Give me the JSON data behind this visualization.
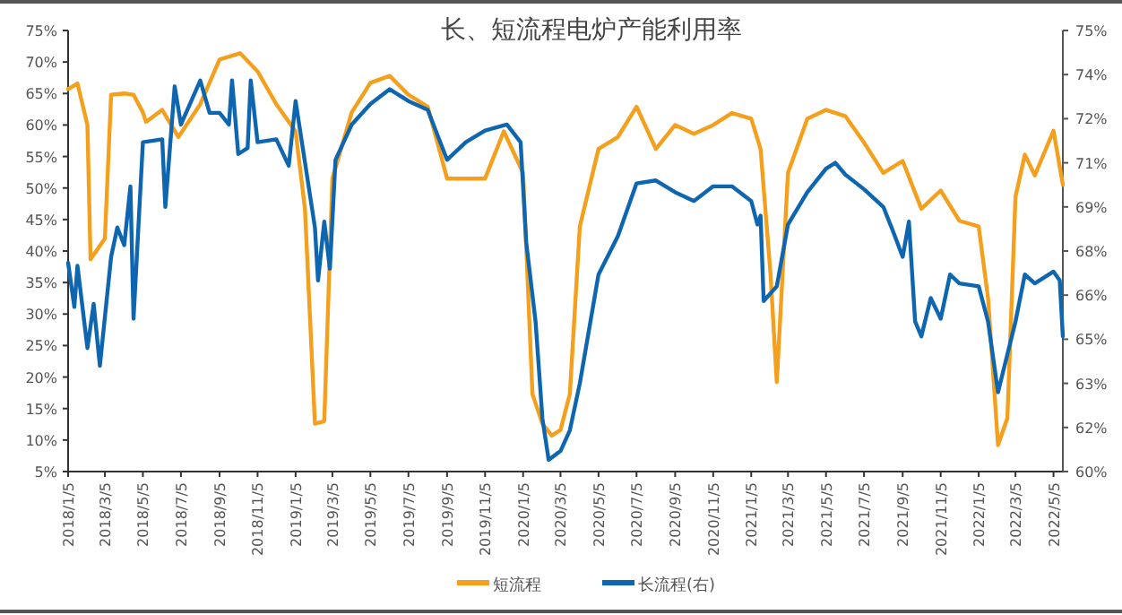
{
  "chart_data": {
    "type": "line",
    "title": "长、短流程电炉产能利用率",
    "legend": "bottom",
    "grid": false,
    "xlim": [
      "2018-01-05",
      "2022-05-20"
    ],
    "xticks": [
      {
        "value": "2018-01-05",
        "label": "2018/1/5"
      },
      {
        "value": "2018-03-05",
        "label": "2018/3/5"
      },
      {
        "value": "2018-05-05",
        "label": "2018/5/5"
      },
      {
        "value": "2018-07-05",
        "label": "2018/7/5"
      },
      {
        "value": "2018-09-05",
        "label": "2018/9/5"
      },
      {
        "value": "2018-11-05",
        "label": "2018/11/5"
      },
      {
        "value": "2019-01-05",
        "label": "2019/1/5"
      },
      {
        "value": "2019-03-05",
        "label": "2019/3/5"
      },
      {
        "value": "2019-05-05",
        "label": "2019/5/5"
      },
      {
        "value": "2019-07-05",
        "label": "2019/7/5"
      },
      {
        "value": "2019-09-05",
        "label": "2019/9/5"
      },
      {
        "value": "2019-11-05",
        "label": "2019/11/5"
      },
      {
        "value": "2020-01-05",
        "label": "2020/1/5"
      },
      {
        "value": "2020-03-05",
        "label": "2020/3/5"
      },
      {
        "value": "2020-05-05",
        "label": "2020/5/5"
      },
      {
        "value": "2020-07-05",
        "label": "2020/7/5"
      },
      {
        "value": "2020-09-05",
        "label": "2020/9/5"
      },
      {
        "value": "2020-11-05",
        "label": "2020/11/5"
      },
      {
        "value": "2021-01-05",
        "label": "2021/1/5"
      },
      {
        "value": "2021-03-05",
        "label": "2021/3/5"
      },
      {
        "value": "2021-05-05",
        "label": "2021/5/5"
      },
      {
        "value": "2021-07-05",
        "label": "2021/7/5"
      },
      {
        "value": "2021-09-05",
        "label": "2021/9/5"
      },
      {
        "value": "2021-11-05",
        "label": "2021/11/5"
      },
      {
        "value": "2022-01-05",
        "label": "2022/1/5"
      },
      {
        "value": "2022-03-05",
        "label": "2022/3/5"
      },
      {
        "value": "2022-05-05",
        "label": "2022/5/5"
      }
    ],
    "ylim": [
      5,
      75
    ],
    "yticks": [
      {
        "value": 5,
        "label": "5%"
      },
      {
        "value": 10,
        "label": "10%"
      },
      {
        "value": 15,
        "label": "15%"
      },
      {
        "value": 20,
        "label": "20%"
      },
      {
        "value": 25,
        "label": "25%"
      },
      {
        "value": 30,
        "label": "30%"
      },
      {
        "value": 35,
        "label": "35%"
      },
      {
        "value": 40,
        "label": "40%"
      },
      {
        "value": 45,
        "label": "45%"
      },
      {
        "value": 50,
        "label": "50%"
      },
      {
        "value": 55,
        "label": "55%"
      },
      {
        "value": 60,
        "label": "60%"
      },
      {
        "value": 65,
        "label": "65%"
      },
      {
        "value": 70,
        "label": "70%"
      },
      {
        "value": 75,
        "label": "75%"
      }
    ],
    "y2lim": [
      60,
      75
    ],
    "y2ticks": [
      {
        "value": 60,
        "label": "60%"
      },
      {
        "value": 61.5,
        "label": "62%"
      },
      {
        "value": 63,
        "label": "63%"
      },
      {
        "value": 64.5,
        "label": "65%"
      },
      {
        "value": 66,
        "label": "66%"
      },
      {
        "value": 67.5,
        "label": "68%"
      },
      {
        "value": 69,
        "label": "69%"
      },
      {
        "value": 70.5,
        "label": "71%"
      },
      {
        "value": 72,
        "label": "72%"
      },
      {
        "value": 73.5,
        "label": "74%"
      },
      {
        "value": 75,
        "label": "75%"
      }
    ],
    "series": [
      {
        "name": "短流程",
        "color": "#f5a01d",
        "x": [
          "2018-01-05",
          "2018-01-20",
          "2018-02-05",
          "2018-02-10",
          "2018-03-05",
          "2018-03-15",
          "2018-04-05",
          "2018-04-20",
          "2018-05-05",
          "2018-05-10",
          "2018-06-05",
          "2018-07-01",
          "2018-08-05",
          "2018-09-05",
          "2018-10-08",
          "2018-11-05",
          "2018-12-05",
          "2019-01-05",
          "2019-01-20",
          "2019-02-05",
          "2019-02-20",
          "2019-03-05",
          "2019-04-05",
          "2019-05-05",
          "2019-06-05",
          "2019-07-05",
          "2019-08-05",
          "2019-09-05",
          "2019-10-05",
          "2019-11-05",
          "2019-12-05",
          "2020-01-05",
          "2020-01-20",
          "2020-02-05",
          "2020-02-20",
          "2020-03-05",
          "2020-03-20",
          "2020-04-05",
          "2020-05-05",
          "2020-06-05",
          "2020-07-05",
          "2020-08-05",
          "2020-09-05",
          "2020-10-05",
          "2020-11-05",
          "2020-12-05",
          "2021-01-05",
          "2021-01-20",
          "2021-02-05",
          "2021-02-15",
          "2021-03-05",
          "2021-04-05",
          "2021-05-05",
          "2021-06-05",
          "2021-07-05",
          "2021-08-05",
          "2021-09-05",
          "2021-10-05",
          "2021-11-05",
          "2021-12-05",
          "2022-01-05",
          "2022-01-20",
          "2022-02-05",
          "2022-02-20",
          "2022-03-05",
          "2022-03-20",
          "2022-04-05",
          "2022-05-05",
          "2022-05-20"
        ],
        "values": [
          65.7,
          66.6,
          60,
          38.7,
          42,
          64.8,
          65,
          64.8,
          62,
          60.5,
          62.4,
          58.1,
          63.3,
          70.4,
          71.4,
          68.5,
          63.3,
          59,
          46.7,
          12.6,
          13,
          51.5,
          62,
          66.7,
          67.8,
          64.8,
          62.9,
          51.5,
          51.5,
          51.5,
          59,
          52.4,
          17.3,
          12.6,
          10.7,
          11.6,
          17.3,
          43.9,
          56.2,
          58.1,
          62.9,
          56.2,
          60,
          58.6,
          60,
          61.9,
          61,
          56.2,
          36.3,
          19.2,
          52.4,
          61,
          62.4,
          61.4,
          57.2,
          52.4,
          54.3,
          46.7,
          49.6,
          44.8,
          43.9,
          32.5,
          9.2,
          13.5,
          48.6,
          55.3,
          52,
          59.1,
          50.5
        ]
      },
      {
        "name": "长流程(右)",
        "color": "#0f66b0",
        "axis": "y2",
        "x": [
          "2018-01-05",
          "2018-01-15",
          "2018-01-20",
          "2018-02-05",
          "2018-02-15",
          "2018-02-25",
          "2018-03-15",
          "2018-03-25",
          "2018-04-05",
          "2018-04-15",
          "2018-04-20",
          "2018-05-05",
          "2018-06-05",
          "2018-06-10",
          "2018-06-25",
          "2018-07-05",
          "2018-08-05",
          "2018-08-20",
          "2018-09-05",
          "2018-09-20",
          "2018-09-25",
          "2018-10-05",
          "2018-10-20",
          "2018-10-25",
          "2018-11-05",
          "2018-12-05",
          "2018-12-25",
          "2019-01-05",
          "2019-02-05",
          "2019-02-10",
          "2019-02-20",
          "2019-03-01",
          "2019-03-10",
          "2019-04-05",
          "2019-05-05",
          "2019-06-05",
          "2019-07-05",
          "2019-08-05",
          "2019-09-05",
          "2019-10-05",
          "2019-11-05",
          "2019-12-10",
          "2020-01-01",
          "2020-01-10",
          "2020-01-25",
          "2020-02-05",
          "2020-02-15",
          "2020-03-05",
          "2020-03-20",
          "2020-04-05",
          "2020-05-05",
          "2020-06-05",
          "2020-07-05",
          "2020-08-05",
          "2020-09-05",
          "2020-10-05",
          "2020-11-05",
          "2020-12-05",
          "2021-01-05",
          "2021-01-15",
          "2021-01-20",
          "2021-01-25",
          "2021-02-15",
          "2021-03-05",
          "2021-04-05",
          "2021-05-05",
          "2021-05-20",
          "2021-06-05",
          "2021-07-05",
          "2021-08-05",
          "2021-08-20",
          "2021-09-05",
          "2021-09-15",
          "2021-09-25",
          "2021-10-05",
          "2021-10-20",
          "2021-11-05",
          "2021-11-20",
          "2021-12-05",
          "2022-01-05",
          "2022-01-20",
          "2022-02-05",
          "2022-03-05",
          "2022-03-20",
          "2022-04-05",
          "2022-05-05",
          "2022-05-15",
          "2022-05-20"
        ],
        "values": [
          67.1,
          65.6,
          67,
          64.2,
          65.7,
          63.6,
          67.3,
          68.3,
          67.7,
          69.7,
          65.2,
          71.2,
          71.3,
          69,
          73.1,
          71.8,
          73.3,
          72.2,
          72.2,
          71.8,
          73.3,
          70.8,
          71,
          73.3,
          71.2,
          71.3,
          70.4,
          72.6,
          68.3,
          66.5,
          68.5,
          66.9,
          70.6,
          71.8,
          72.5,
          73,
          72.6,
          72.3,
          70.6,
          71.2,
          71.6,
          71.8,
          71.2,
          67.8,
          65.1,
          61.8,
          60.4,
          60.7,
          61.4,
          63,
          66.7,
          68,
          69.8,
          69.9,
          69.5,
          69.2,
          69.7,
          69.7,
          69.2,
          68.4,
          68.7,
          65.8,
          66.3,
          68.4,
          69.5,
          70.3,
          70.5,
          70.1,
          69.6,
          69,
          68.2,
          67.3,
          68.5,
          65.1,
          64.6,
          65.9,
          65.2,
          66.7,
          66.4,
          66.3,
          65.1,
          62.7,
          65.1,
          66.7,
          66.4,
          66.8,
          66.5,
          64.6
        ]
      }
    ]
  }
}
